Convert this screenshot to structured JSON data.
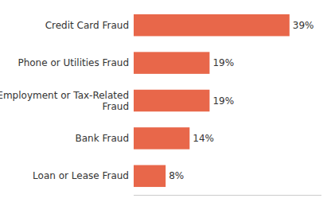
{
  "chart_data": {
    "type": "bar",
    "orientation": "horizontal",
    "categories": [
      "Credit Card Fraud",
      "Phone or Utilities Fraud",
      "Employment or Tax-Related\nFraud",
      "Bank Fraud",
      "Loan or Lease Fraud"
    ],
    "values": [
      39,
      19,
      19,
      14,
      8
    ],
    "value_labels": [
      "39%",
      "19%",
      "19%",
      "14%",
      "8%"
    ],
    "data_labels": true,
    "color": "#E8674A",
    "xlim": [
      0,
      47
    ],
    "tick_labels": "y"
  }
}
